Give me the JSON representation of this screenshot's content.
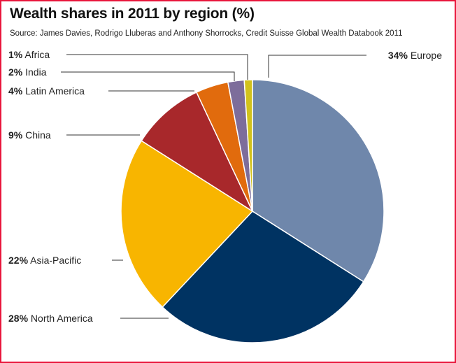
{
  "chart_data": {
    "type": "pie",
    "title": "Wealth shares in 2011 by region (%)",
    "subtitle": "Source: James Davies, Rodrigo Lluberas and Anthony Shorrocks, Credit Suisse Global Wealth Databook 2011",
    "unit": "%",
    "slices": [
      {
        "name": "Europe",
        "pct_label": "34%",
        "value": 34,
        "color": "#6f87ab"
      },
      {
        "name": "North America",
        "pct_label": "28%",
        "value": 28,
        "color": "#003362"
      },
      {
        "name": "Asia-Pacific",
        "pct_label": "22%",
        "value": 22,
        "color": "#f8b500"
      },
      {
        "name": "China",
        "pct_label": "9%",
        "value": 9,
        "color": "#a8282b"
      },
      {
        "name": "Latin America",
        "pct_label": "4%",
        "value": 4,
        "color": "#e16b0d"
      },
      {
        "name": "India",
        "pct_label": "2%",
        "value": 2,
        "color": "#7d6d9b"
      },
      {
        "name": "Africa",
        "pct_label": "1%",
        "value": 1,
        "color": "#d2c21c"
      }
    ]
  },
  "colors": {
    "frame_border": "#e8173c",
    "leader_line": "#333333",
    "slice_separator": "#ffffff"
  }
}
